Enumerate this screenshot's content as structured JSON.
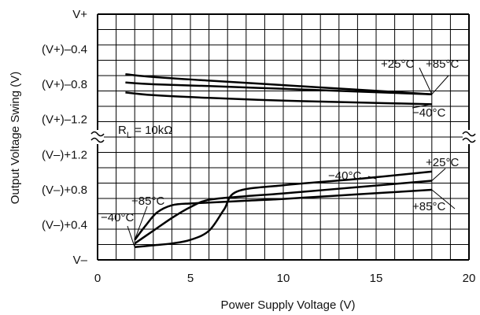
{
  "chart_data": {
    "type": "line",
    "xlabel": "Power Supply Voltage (V)",
    "ylabel": "Output Voltage Swing (V)",
    "xlim": [
      0,
      20
    ],
    "x_ticks": [
      0,
      5,
      10,
      15,
      20
    ],
    "x_tick_labels": [
      "0",
      "5",
      "10",
      "15",
      "20"
    ],
    "y_tick_labels": [
      "V+",
      "(V+)–0.4",
      "(V+)–0.8",
      "(V+)–1.2",
      "(V–)+1.2",
      "(V–)+0.8",
      "(V–)+0.4",
      "V–"
    ],
    "grid": true,
    "axis_break": "~~",
    "annotation": {
      "text_main": "R",
      "text_sub": "L",
      "text_rest": " = 10kΩ"
    },
    "upper_segment": {
      "reference": "V+",
      "ylim": [
        -1.35,
        0
      ],
      "series": [
        {
          "name": "+25°C",
          "x": [
            1.5,
            3,
            6,
            10,
            14,
            18
          ],
          "y": [
            -0.75,
            -0.77,
            -0.79,
            -0.82,
            -0.85,
            -0.88
          ]
        },
        {
          "name": "+85°C",
          "x": [
            1.5,
            3,
            6,
            10,
            14,
            18
          ],
          "y": [
            -0.66,
            -0.69,
            -0.73,
            -0.78,
            -0.83,
            -0.88
          ]
        },
        {
          "name": "−40°C",
          "x": [
            1.5,
            3,
            6,
            10,
            14,
            18
          ],
          "y": [
            -0.86,
            -0.89,
            -0.92,
            -0.95,
            -0.97,
            -0.99
          ]
        }
      ],
      "labels": [
        {
          "text": "+25°C",
          "series": 0
        },
        {
          "text": "+85°C",
          "series": 1
        },
        {
          "text": "−40°C",
          "series": 2
        }
      ]
    },
    "lower_segment": {
      "reference": "V–",
      "ylim": [
        0,
        1.35
      ],
      "series": [
        {
          "name": "−40°C",
          "x": [
            2.0,
            3.0,
            4.0,
            5.0,
            6.0,
            6.8,
            7.5,
            10,
            14,
            18
          ],
          "y": [
            0.14,
            0.16,
            0.18,
            0.22,
            0.32,
            0.55,
            0.75,
            0.82,
            0.89,
            0.97
          ]
        },
        {
          "name": "+25°C",
          "x": [
            2.0,
            3.0,
            4.0,
            5.0,
            6.0,
            8.0,
            10,
            14,
            18
          ],
          "y": [
            0.18,
            0.32,
            0.46,
            0.58,
            0.66,
            0.7,
            0.73,
            0.8,
            0.87
          ]
        },
        {
          "name": "+85°C",
          "x": [
            2.0,
            2.6,
            3.2,
            4.0,
            5.0,
            6.0,
            8.0,
            10,
            14,
            18
          ],
          "y": [
            0.22,
            0.38,
            0.52,
            0.6,
            0.62,
            0.63,
            0.65,
            0.67,
            0.72,
            0.77
          ]
        }
      ],
      "labels": [
        {
          "text": "−40°C",
          "series": 0
        },
        {
          "text": "+25°C",
          "series": 1
        },
        {
          "text": "+85°C",
          "series": 2
        },
        {
          "text": "+85°C",
          "series": 2
        },
        {
          "text": "−40°C",
          "series": 0
        }
      ]
    }
  }
}
